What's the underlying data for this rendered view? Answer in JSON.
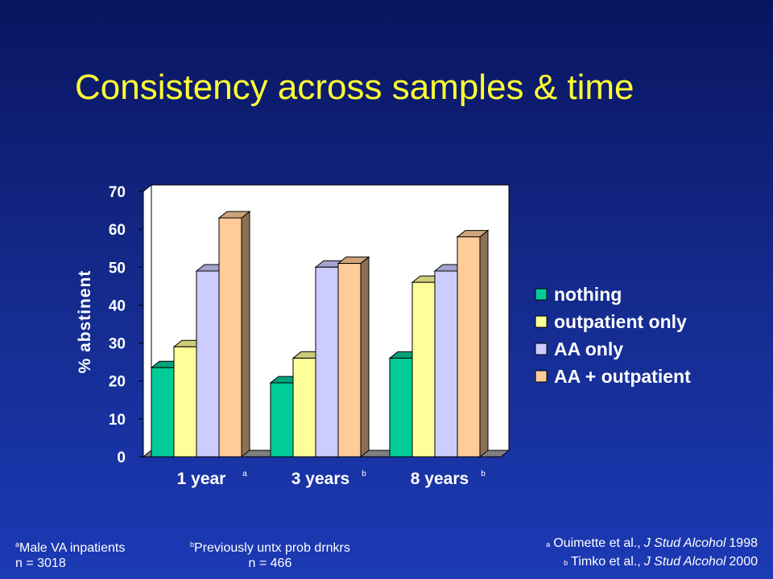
{
  "slide": {
    "title": "Consistency across samples & time"
  },
  "chart_data": {
    "type": "bar",
    "categories": [
      "1 year",
      "3 years",
      "8 years"
    ],
    "category_superscripts": [
      "a",
      "b",
      "b"
    ],
    "series": [
      {
        "name": "nothing",
        "values": [
          23.5,
          19.5,
          26
        ],
        "color": "#00cc99"
      },
      {
        "name": "outpatient only",
        "values": [
          29,
          26,
          46
        ],
        "color": "#ffff99"
      },
      {
        "name": "AA only",
        "values": [
          49,
          50,
          49
        ],
        "color": "#ccccff"
      },
      {
        "name": "AA + outpatient",
        "values": [
          63,
          51,
          58
        ],
        "color": "#ffcc99"
      }
    ],
    "ylabel": "% abstinent",
    "xlabel": "",
    "ylim": [
      0,
      70
    ],
    "yticks": [
      "0",
      "10",
      "20",
      "30",
      "40",
      "50",
      "60",
      "70"
    ],
    "legend_position": "right",
    "grid": false
  },
  "footnotes": {
    "a_sup": "a",
    "a_line1": "Male VA inpatients",
    "a_line2": "n = 3018",
    "b_sup": "b",
    "b_line1": "Previously untx prob drnkrs",
    "b_line2": "n = 466"
  },
  "references": [
    {
      "sup": "a",
      "authors": "Ouimette et al.,",
      "journal": "J Stud Alcohol",
      "year": "1998"
    },
    {
      "sup": "b",
      "authors": "Timko et al.,",
      "journal": "J Stud Alcohol",
      "year": "2000"
    }
  ]
}
